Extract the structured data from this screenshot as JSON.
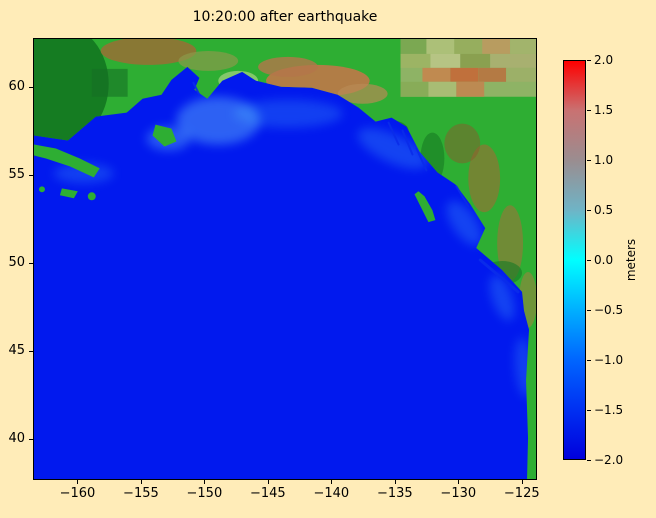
{
  "figure": {
    "background": "#ffecb8"
  },
  "chart_data": {
    "type": "heatmap",
    "title": "10:20:00 after earthquake",
    "xlabel": "",
    "ylabel": "",
    "xlim": [
      -163.5,
      -123.8
    ],
    "ylim": [
      37.7,
      62.8
    ],
    "grid": false,
    "x_ticks": [
      {
        "v": -160,
        "label": "−160"
      },
      {
        "v": -155,
        "label": "−155"
      },
      {
        "v": -150,
        "label": "−150"
      },
      {
        "v": -145,
        "label": "−145"
      },
      {
        "v": -140,
        "label": "−140"
      },
      {
        "v": -135,
        "label": "−135"
      },
      {
        "v": -130,
        "label": "−130"
      },
      {
        "v": -125,
        "label": "−125"
      }
    ],
    "y_ticks": [
      {
        "v": 60,
        "label": "60"
      },
      {
        "v": 55,
        "label": "55"
      },
      {
        "v": 50,
        "label": "50"
      },
      {
        "v": 45,
        "label": "45"
      },
      {
        "v": 40,
        "label": "40"
      }
    ],
    "colorbar": {
      "label": "meters",
      "vmin": -2.0,
      "vmax": 2.0,
      "ticks": [
        {
          "v": 2.0,
          "label": "2.0"
        },
        {
          "v": 1.5,
          "label": "1.5"
        },
        {
          "v": 1.0,
          "label": "1.0"
        },
        {
          "v": 0.5,
          "label": "0.5"
        },
        {
          "v": 0.0,
          "label": "0.0"
        },
        {
          "v": -0.5,
          "label": "−0.5"
        },
        {
          "v": -1.0,
          "label": "−1.0"
        },
        {
          "v": -1.5,
          "label": "−1.5"
        },
        {
          "v": -2.0,
          "label": "−2.0"
        }
      ],
      "stops": [
        {
          "v": 2.0,
          "color": "#fe0000"
        },
        {
          "v": 1.5,
          "color": "#c97272"
        },
        {
          "v": 1.0,
          "color": "#9a8d90"
        },
        {
          "v": 0.5,
          "color": "#6fb4c6"
        },
        {
          "v": 0.0,
          "color": "#00ffff"
        },
        {
          "v": -0.5,
          "color": "#00b0ff"
        },
        {
          "v": -1.0,
          "color": "#0066ff"
        },
        {
          "v": -1.5,
          "color": "#0030f2"
        },
        {
          "v": -2.0,
          "color": "#0000dc"
        }
      ]
    },
    "colors": {
      "figure_bg": "#ffecb8",
      "ocean": "#0119ee",
      "land": "#2eae33",
      "mountains": "#c07848",
      "wave_highlight": "#7fe8ff"
    },
    "description": "Tsunami sea-surface elevation (meters) over the Gulf of Alaska and NE Pacific at 10:20:00 after the earthquake; uniform deep-blue ocean with green/brown coastal topography of Alaska, British Columbia and the US west coast."
  }
}
